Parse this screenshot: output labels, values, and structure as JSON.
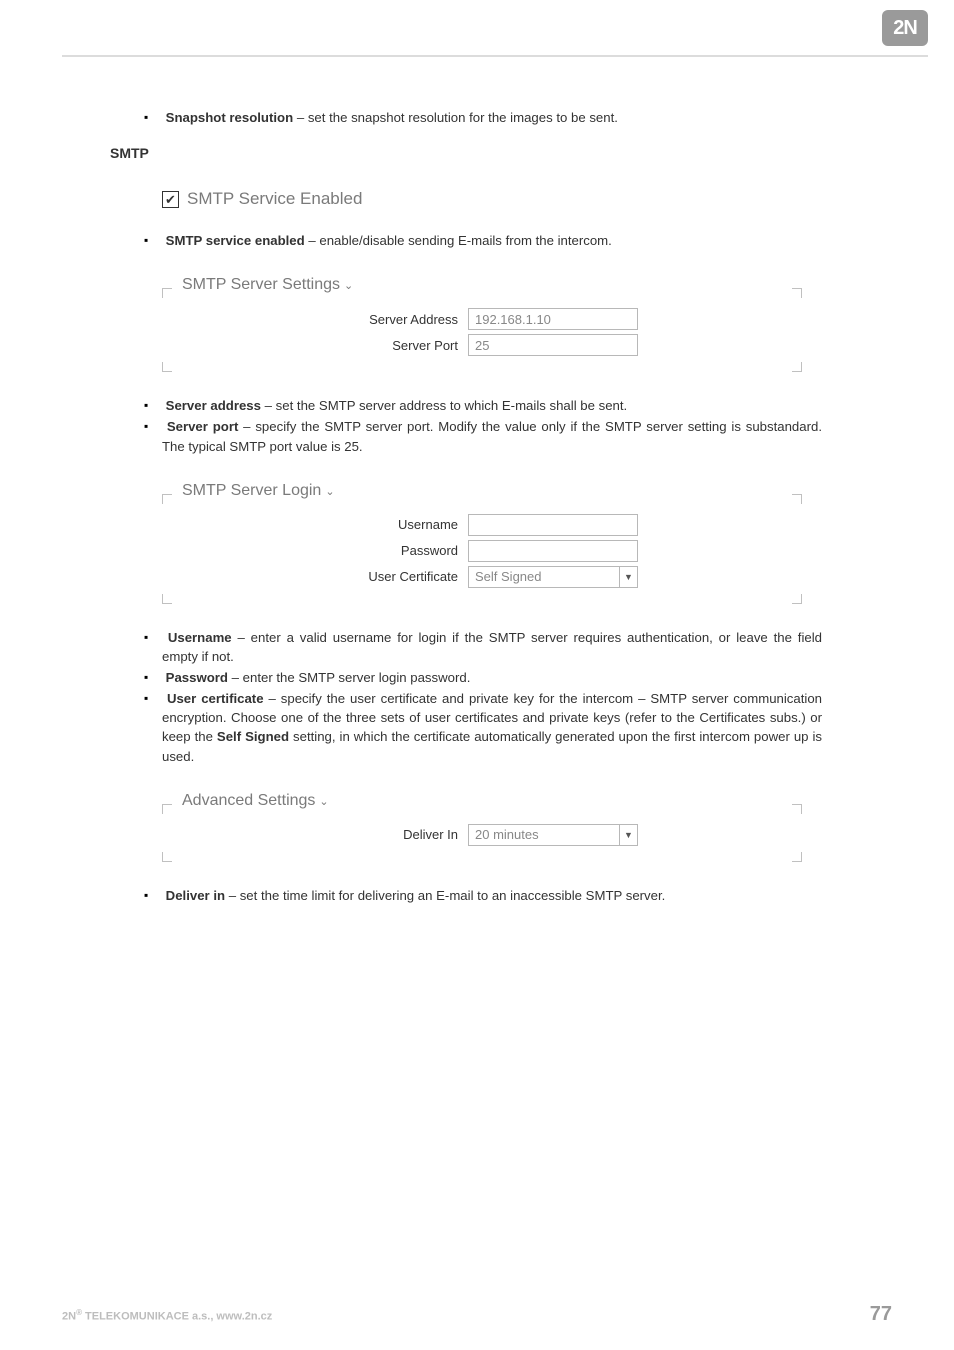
{
  "logo": {
    "text": "2N"
  },
  "intro_bullets": [
    {
      "bold": "Snapshot resolution",
      "rest": " – set the snapshot resolution for the images to be sent."
    }
  ],
  "section_heading": "SMTP",
  "smtp_enabled": {
    "checked": true,
    "label": "SMTP Service Enabled"
  },
  "smtp_enabled_bullet": {
    "bold": "SMTP service enabled",
    "rest": " – enable/disable sending E-mails from the intercom."
  },
  "server_settings": {
    "legend": "SMTP Server Settings",
    "rows": [
      {
        "label": "Server Address",
        "value": "192.168.1.10",
        "type": "text"
      },
      {
        "label": "Server Port",
        "value": "25",
        "type": "text"
      }
    ]
  },
  "server_bullets": [
    {
      "bold": "Server address",
      "rest": " – set the SMTP server address to which E-mails shall be sent."
    },
    {
      "bold": "Server port",
      "rest": " – specify the SMTP server port. Modify the value only if the SMTP server setting is substandard. The typical SMTP port value is 25."
    }
  ],
  "login_settings": {
    "legend": "SMTP Server Login",
    "rows": [
      {
        "label": "Username",
        "value": "",
        "type": "text"
      },
      {
        "label": "Password",
        "value": "",
        "type": "password"
      },
      {
        "label": "User Certificate",
        "value": "Self Signed",
        "type": "select"
      }
    ]
  },
  "login_bullets": [
    {
      "bold": "Username",
      "rest": " – enter a valid username for login if the SMTP server requires authentication, or leave the field empty if not."
    },
    {
      "bold": "Password",
      "rest": " – enter the SMTP server login password."
    },
    {
      "bold": "User certificate",
      "rest": " – specify the user certificate and private key for the intercom – SMTP server communication encryption. Choose one of the three sets of user certificates and private keys (refer to the Certificates subs.) or keep the ",
      "bold2": "Self Signed",
      "rest2": " setting, in which the certificate automatically generated upon the first intercom power up is used."
    }
  ],
  "advanced_settings": {
    "legend": "Advanced Settings",
    "rows": [
      {
        "label": "Deliver In",
        "value": "20 minutes",
        "type": "select"
      }
    ]
  },
  "advanced_bullets": [
    {
      "bold": "Deliver in",
      "rest": " – set the time limit for delivering an E-mail to an inaccessible SMTP server."
    }
  ],
  "footer": {
    "left_prefix": "2N",
    "left_sup": "®",
    "left_rest": " TELEKOMUNIKACE a.s., www.2n.cz",
    "page": "77"
  },
  "colors": {
    "rule": "#dcdcdc",
    "logo_bg": "#9a9a9a",
    "muted": "#7a7a7a",
    "field_border": "#b8b8b8",
    "footer_gray": "#bdbdbd",
    "pagenum": "#9a9a9a"
  }
}
